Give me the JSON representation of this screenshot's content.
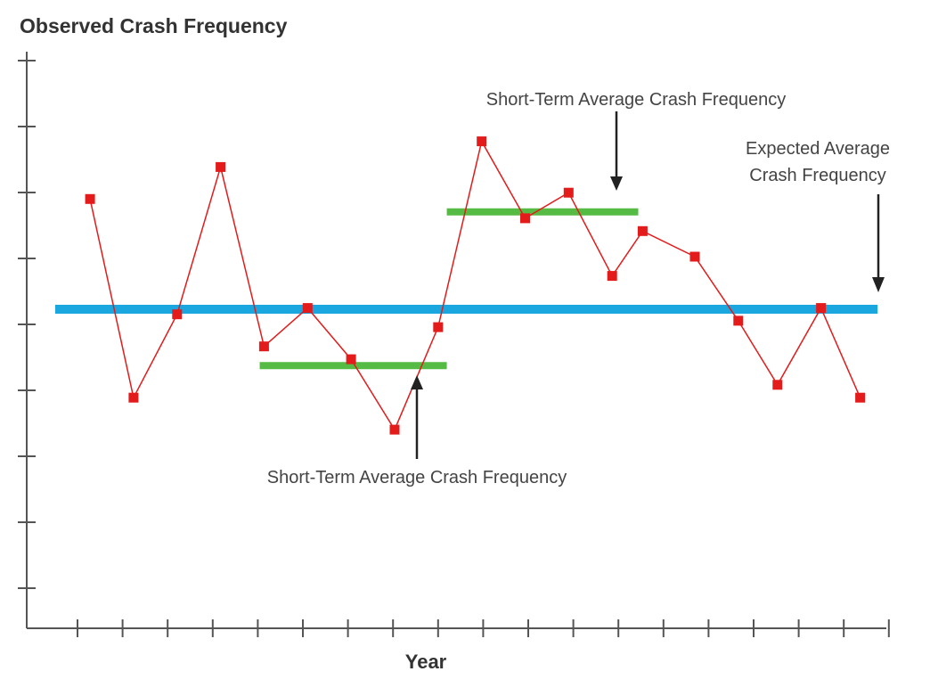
{
  "chart_data": {
    "type": "line",
    "ylabel": "Observed Crash Frequency",
    "xlabel": "Year",
    "x_tick_count": 19,
    "y_tick_count": 9,
    "grid": false,
    "legend": "none",
    "xlim": [
      -0.5,
      18.5
    ],
    "ylim": [
      0,
      9
    ],
    "series": [
      {
        "x": [
          0.3,
          1.3,
          2.3,
          3.3,
          4.3,
          5.3,
          6.3,
          7.3,
          8.3,
          9.3,
          10.3,
          11.3,
          12.3,
          13.0,
          14.2,
          15.2,
          16.1,
          17.1,
          18.0
        ],
        "y": [
          6.7,
          3.6,
          4.9,
          7.2,
          4.4,
          5.0,
          4.2,
          3.1,
          4.7,
          7.6,
          6.4,
          6.8,
          5.5,
          6.2,
          5.8,
          4.8,
          3.8,
          5.0,
          3.6
        ],
        "color": "#e31b1b"
      }
    ],
    "reference_lines": [
      {
        "y": 4.98,
        "x_start": -0.5,
        "x_end": 18.4,
        "color": "#1aa7e0"
      },
      {
        "y": 4.1,
        "x_start": 4.2,
        "x_end": 8.5,
        "color": "#55bb44"
      },
      {
        "y": 6.5,
        "x_start": 8.5,
        "x_end": 12.9,
        "color": "#55bb44"
      }
    ],
    "annotations": [
      {
        "text": "Short-Term Average Crash Frequency",
        "position": "above-right"
      },
      {
        "text": "Short-Term Average Crash Frequency",
        "position": "below-center"
      },
      {
        "text_lines": [
          "Expected Average",
          "Crash Frequency"
        ],
        "position": "right"
      }
    ]
  }
}
